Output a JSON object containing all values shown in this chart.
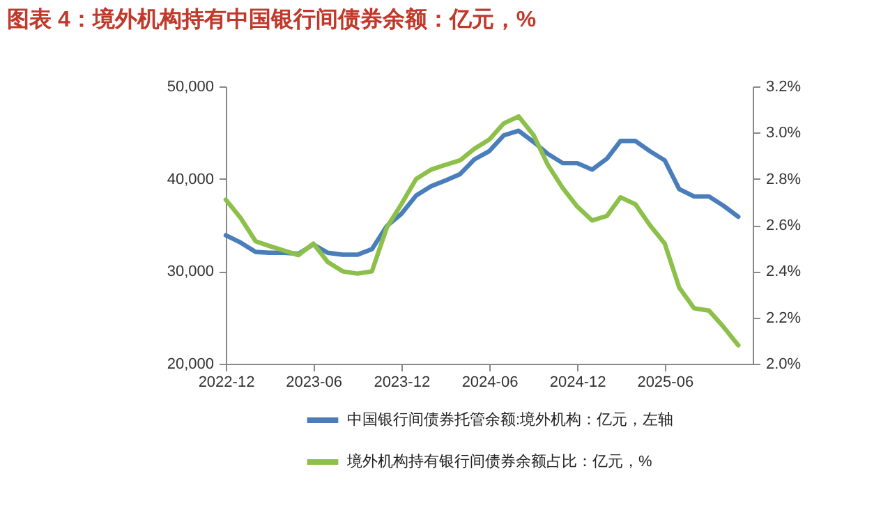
{
  "chart_data": {
    "type": "line",
    "title": "图表 4：境外机构持有中国银行间债券余额：亿元，%",
    "x": [
      "2022-12",
      "2023-01",
      "2023-02",
      "2023-03",
      "2023-04",
      "2023-05",
      "2023-06",
      "2023-07",
      "2023-08",
      "2023-09",
      "2023-10",
      "2023-11",
      "2023-12",
      "2024-01",
      "2024-02",
      "2024-03",
      "2024-04",
      "2024-05",
      "2024-06",
      "2024-07",
      "2024-08",
      "2024-09",
      "2024-10",
      "2024-11",
      "2024-12",
      "2025-01",
      "2025-02",
      "2025-03",
      "2025-04",
      "2025-05",
      "2025-06",
      "2025-07",
      "2025-08",
      "2025-09",
      "2025-10",
      "2025-11"
    ],
    "series": [
      {
        "name": "中国银行间债券托管余额:境外机构：亿元，左轴",
        "color": "#4a7ebb",
        "values": [
          33900,
          33100,
          32100,
          32000,
          32000,
          31900,
          32900,
          32000,
          31800,
          31800,
          32400,
          34900,
          36200,
          38200,
          39200,
          39800,
          40500,
          42100,
          43000,
          44700,
          45200,
          44000,
          42700,
          41700,
          41700,
          41000,
          42200,
          44100,
          44100,
          43000,
          42000,
          38900,
          38100,
          38100,
          37100,
          35900
        ]
      },
      {
        "name": "境外机构持有银行间债券余额占比：亿元，%",
        "color": "#8dc04a",
        "axis": "y2",
        "values": [
          2.71,
          2.63,
          2.53,
          2.51,
          2.49,
          2.47,
          2.52,
          2.44,
          2.4,
          2.39,
          2.4,
          2.59,
          2.69,
          2.8,
          2.84,
          2.86,
          2.88,
          2.93,
          2.97,
          3.04,
          3.07,
          2.99,
          2.86,
          2.76,
          2.68,
          2.62,
          2.64,
          2.72,
          2.69,
          2.6,
          2.52,
          2.33,
          2.24,
          2.23,
          2.16,
          2.08
        ]
      }
    ],
    "xlim": [
      "2022-12",
      "2025-12"
    ],
    "xticks": [
      "2022-12",
      "2023-06",
      "2023-12",
      "2024-06",
      "2024-12",
      "2025-06"
    ],
    "ylim": [
      20000,
      50000
    ],
    "yticks": [
      {
        "value": 20000,
        "label": "20,000"
      },
      {
        "value": 30000,
        "label": "30,000"
      },
      {
        "value": 40000,
        "label": "40,000"
      },
      {
        "value": 50000,
        "label": "50,000"
      }
    ],
    "y2lim": [
      2.0,
      3.2
    ],
    "y2ticks": [
      {
        "value": 2.0,
        "label": "2.0%"
      },
      {
        "value": 2.2,
        "label": "2.2%"
      },
      {
        "value": 2.4,
        "label": "2.4%"
      },
      {
        "value": 2.6,
        "label": "2.6%"
      },
      {
        "value": 2.8,
        "label": "2.8%"
      },
      {
        "value": 3.0,
        "label": "3.0%"
      },
      {
        "value": 3.2,
        "label": "3.2%"
      }
    ],
    "grid": false,
    "legend": "bottom",
    "marker": "none",
    "line_style": "solid"
  }
}
